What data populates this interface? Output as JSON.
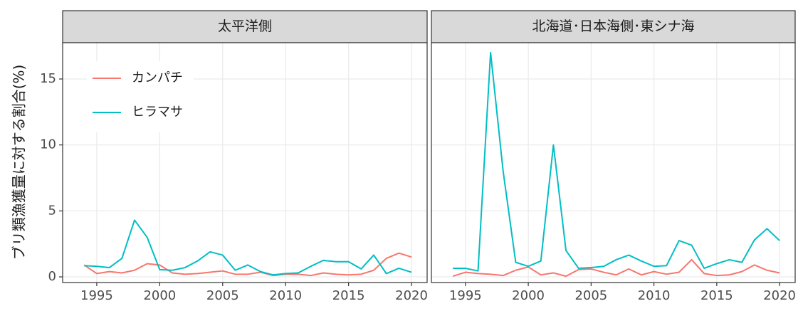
{
  "chart_data": {
    "type": "line",
    "ylabel": "ブリ類漁獲量に対する割合(%)",
    "x": [
      1994,
      1995,
      1996,
      1997,
      1998,
      1999,
      2000,
      2001,
      2002,
      2003,
      2004,
      2005,
      2006,
      2007,
      2008,
      2009,
      2010,
      2011,
      2012,
      2013,
      2014,
      2015,
      2016,
      2017,
      2018,
      2019,
      2020
    ],
    "xlim": [
      1992.29,
      2021.24
    ],
    "xticks": [
      1995,
      2000,
      2005,
      2010,
      2015,
      2020
    ],
    "ylim": [
      -0.43,
      17.75
    ],
    "yticks": [
      0,
      5,
      10,
      15
    ],
    "grid": true,
    "legend": "upper left",
    "series": [
      {
        "name": "カンパチ",
        "color": "#F8766D"
      },
      {
        "name": "ヒラマサ",
        "color": "#00BFC4"
      }
    ],
    "panels": [
      {
        "title": "太平洋側",
        "series": [
          {
            "values": [
              0.9,
              0.25,
              0.4,
              0.3,
              0.5,
              1.0,
              0.9,
              0.3,
              0.2,
              0.25,
              0.35,
              0.45,
              0.2,
              0.2,
              0.35,
              0.1,
              0.2,
              0.2,
              0.1,
              0.3,
              0.2,
              0.15,
              0.2,
              0.5,
              1.4,
              1.8,
              1.5
            ]
          },
          {
            "values": [
              0.85,
              0.8,
              0.7,
              1.4,
              4.3,
              3.0,
              0.55,
              0.5,
              0.7,
              1.2,
              1.9,
              1.65,
              0.5,
              0.9,
              0.4,
              0.15,
              0.25,
              0.3,
              0.8,
              1.25,
              1.15,
              1.15,
              0.6,
              1.65,
              0.25,
              0.65,
              0.35
            ]
          }
        ]
      },
      {
        "title": "北海道･日本海側･東シナ海",
        "series": [
          {
            "values": [
              0.05,
              0.35,
              0.25,
              0.2,
              0.1,
              0.5,
              0.75,
              0.15,
              0.3,
              0.05,
              0.55,
              0.6,
              0.35,
              0.15,
              0.6,
              0.15,
              0.4,
              0.2,
              0.35,
              1.3,
              0.25,
              0.1,
              0.15,
              0.4,
              0.9,
              0.5,
              0.3
            ]
          },
          {
            "values": [
              0.65,
              0.65,
              0.45,
              17.0,
              8.0,
              1.1,
              0.8,
              1.2,
              10.0,
              2.0,
              0.65,
              0.7,
              0.8,
              1.3,
              1.65,
              1.2,
              0.8,
              0.85,
              2.75,
              2.4,
              0.65,
              1.0,
              1.3,
              1.1,
              2.8,
              3.65,
              2.75
            ]
          }
        ]
      }
    ]
  }
}
